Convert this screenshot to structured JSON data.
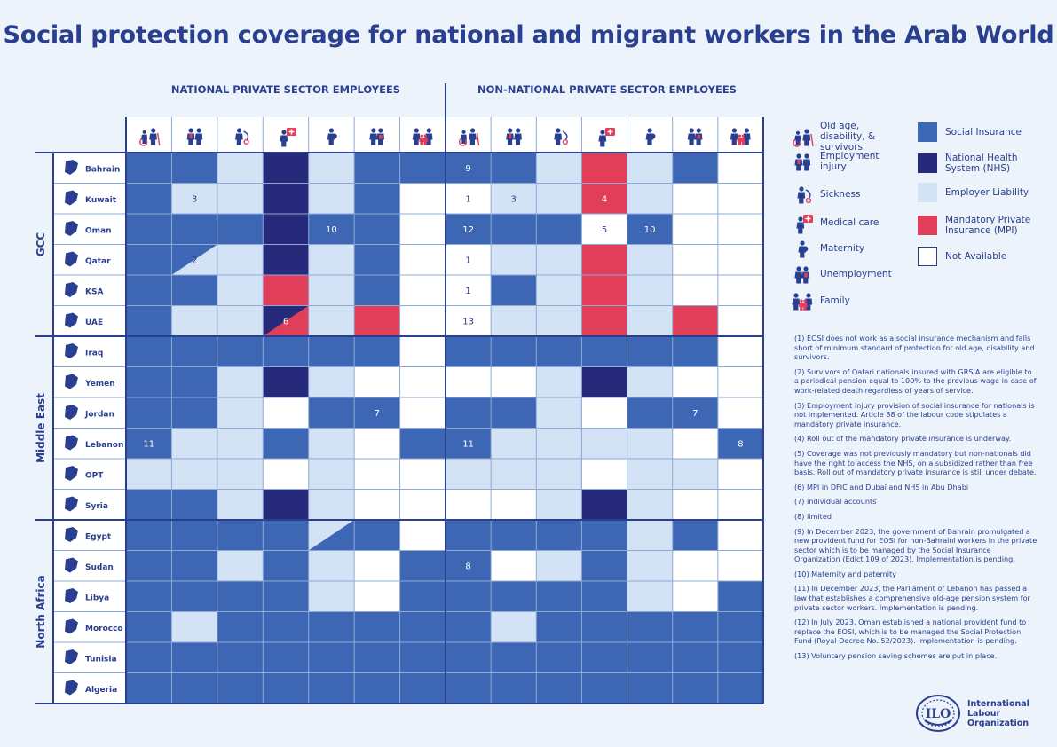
{
  "title": "Social protection coverage for national and migrant workers in the Arab World",
  "sections": {
    "national": "NATIONAL PRIVATE SECTOR EMPLOYEES",
    "non_national": "NON-NATIONAL PRIVATE SECTOR EMPLOYEES"
  },
  "colors": {
    "SI": "#3d67b5",
    "NHS": "#27297a",
    "EL": "#d3e3f5",
    "MPI": "#e13e5a",
    "NA": "#ffffff",
    "grid": "#2a3f8f",
    "divider": "#8ea9d6"
  },
  "legend": {
    "icons": [
      {
        "icon": "old-age-icon",
        "label": "Old age, disability, & survivors"
      },
      {
        "icon": "employment-injury-icon",
        "label": "Employment injury"
      },
      {
        "icon": "sickness-icon",
        "label": "Sickness"
      },
      {
        "icon": "medical-care-icon",
        "label": "Medical care"
      },
      {
        "icon": "maternity-icon",
        "label": "Maternity"
      },
      {
        "icon": "unemployment-icon",
        "label": "Unemployment"
      },
      {
        "icon": "family-icon",
        "label": "Family"
      }
    ],
    "schemes": [
      {
        "code": "SI",
        "label": "Social Insurance"
      },
      {
        "code": "NHS",
        "label": "National Health System (NHS)"
      },
      {
        "code": "EL",
        "label": "Employer Liability"
      },
      {
        "code": "MPI",
        "label": "Mandatory Private Insurance (MPI)"
      },
      {
        "code": "NA",
        "label": "Not Available"
      }
    ]
  },
  "regions": [
    {
      "name": "GCC",
      "rows": 6
    },
    {
      "name": "Middle East",
      "rows": 6
    },
    {
      "name": "North Africa",
      "rows": 6
    }
  ],
  "chart_data": {
    "type": "table",
    "columns": [
      "Old age, disability, & survivors",
      "Employment injury",
      "Sickness",
      "Medical care",
      "Maternity",
      "Unemployment",
      "Family"
    ],
    "rows": [
      {
        "country": "Bahrain",
        "national": [
          "SI",
          "SI",
          "EL",
          "NHS",
          "EL",
          "SI",
          "SI"
        ],
        "non_national": [
          "SI",
          "SI",
          "EL",
          "MPI",
          "EL",
          "SI",
          "NA"
        ],
        "nat_notes": [
          "",
          "",
          "",
          "",
          "",
          "",
          ""
        ],
        "non_notes": [
          "9",
          "",
          "",
          "",
          "",
          "",
          ""
        ]
      },
      {
        "country": "Kuwait",
        "national": [
          "SI",
          "EL",
          "EL",
          "NHS",
          "EL",
          "SI",
          "NA"
        ],
        "non_national": [
          "NA",
          "EL",
          "EL",
          "MPI",
          "EL",
          "NA",
          "NA"
        ],
        "nat_notes": [
          "",
          "3",
          "",
          "",
          "",
          "",
          ""
        ],
        "non_notes": [
          "1",
          "3",
          "",
          "4",
          "",
          "",
          ""
        ]
      },
      {
        "country": "Oman",
        "national": [
          "SI",
          "SI",
          "SI",
          "NHS",
          "SI",
          "SI",
          "NA"
        ],
        "non_national": [
          "SI",
          "SI",
          "SI",
          "NA",
          "SI",
          "NA",
          "NA"
        ],
        "nat_notes": [
          "",
          "",
          "",
          "",
          "10",
          "",
          ""
        ],
        "non_notes": [
          "12",
          "",
          "",
          "5",
          "10",
          "",
          ""
        ]
      },
      {
        "country": "Qatar",
        "national": [
          "SI",
          "SI/EL",
          "EL",
          "NHS",
          "EL",
          "SI",
          "NA"
        ],
        "non_national": [
          "NA",
          "EL",
          "EL",
          "MPI",
          "EL",
          "NA",
          "NA"
        ],
        "nat_notes": [
          "",
          "2",
          "",
          "",
          "",
          "",
          ""
        ],
        "non_notes": [
          "1",
          "",
          "",
          "",
          "",
          "",
          ""
        ]
      },
      {
        "country": "KSA",
        "national": [
          "SI",
          "SI",
          "EL",
          "MPI",
          "EL",
          "SI",
          "NA"
        ],
        "non_national": [
          "NA",
          "SI",
          "EL",
          "MPI",
          "EL",
          "NA",
          "NA"
        ],
        "nat_notes": [
          "",
          "",
          "",
          "",
          "",
          "",
          ""
        ],
        "non_notes": [
          "1",
          "",
          "",
          "",
          "",
          "",
          ""
        ]
      },
      {
        "country": "UAE",
        "national": [
          "SI",
          "EL",
          "EL",
          "NHS/MPI",
          "EL",
          "MPI",
          "NA"
        ],
        "non_national": [
          "NA",
          "EL",
          "EL",
          "MPI",
          "EL",
          "MPI",
          "NA"
        ],
        "nat_notes": [
          "",
          "",
          "",
          "6",
          "",
          "",
          ""
        ],
        "non_notes": [
          "13",
          "",
          "",
          "",
          "",
          "",
          ""
        ]
      },
      {
        "country": "Iraq",
        "national": [
          "SI",
          "SI",
          "SI",
          "SI",
          "SI",
          "SI",
          "NA"
        ],
        "non_national": [
          "SI",
          "SI",
          "SI",
          "SI",
          "SI",
          "SI",
          "NA"
        ],
        "nat_notes": [
          "",
          "",
          "",
          "",
          "",
          "",
          ""
        ],
        "non_notes": [
          "",
          "",
          "",
          "",
          "",
          "",
          ""
        ]
      },
      {
        "country": "Yemen",
        "national": [
          "SI",
          "SI",
          "EL",
          "NHS",
          "EL",
          "NA",
          "NA"
        ],
        "non_national": [
          "NA",
          "NA",
          "EL",
          "NHS",
          "EL",
          "NA",
          "NA"
        ],
        "nat_notes": [
          "",
          "",
          "",
          "",
          "",
          "",
          ""
        ],
        "non_notes": [
          "",
          "",
          "",
          "",
          "",
          "",
          ""
        ]
      },
      {
        "country": "Jordan",
        "national": [
          "SI",
          "SI",
          "EL",
          "NA",
          "SI",
          "SI",
          "NA"
        ],
        "non_national": [
          "SI",
          "SI",
          "EL",
          "NA",
          "SI",
          "SI",
          "NA"
        ],
        "nat_notes": [
          "",
          "",
          "",
          "",
          "",
          "7",
          ""
        ],
        "non_notes": [
          "",
          "",
          "",
          "",
          "",
          "7",
          ""
        ]
      },
      {
        "country": "Lebanon",
        "national": [
          "SI",
          "EL",
          "EL",
          "SI",
          "EL",
          "NA",
          "SI"
        ],
        "non_national": [
          "SI",
          "EL",
          "EL",
          "EL",
          "EL",
          "NA",
          "SI"
        ],
        "nat_notes": [
          "11",
          "",
          "",
          "",
          "",
          "",
          ""
        ],
        "non_notes": [
          "11",
          "",
          "",
          "",
          "",
          "",
          "8"
        ]
      },
      {
        "country": "OPT",
        "national": [
          "EL",
          "EL",
          "EL",
          "NA",
          "EL",
          "NA",
          "NA"
        ],
        "non_national": [
          "EL",
          "EL",
          "EL",
          "NA",
          "EL",
          "EL",
          "NA"
        ],
        "nat_notes": [
          "",
          "",
          "",
          "",
          "",
          "",
          ""
        ],
        "non_notes": [
          "",
          "",
          "",
          "",
          "",
          "",
          ""
        ]
      },
      {
        "country": "Syria",
        "national": [
          "SI",
          "SI",
          "EL",
          "NHS",
          "EL",
          "NA",
          "NA"
        ],
        "non_national": [
          "NA",
          "NA",
          "EL",
          "NHS",
          "EL",
          "NA",
          "NA"
        ],
        "nat_notes": [
          "",
          "",
          "",
          "",
          "",
          "",
          ""
        ],
        "non_notes": [
          "",
          "",
          "",
          "",
          "",
          "",
          ""
        ]
      },
      {
        "country": "Egypt",
        "national": [
          "SI",
          "SI",
          "SI",
          "SI",
          "EL/SI",
          "SI",
          "NA"
        ],
        "non_national": [
          "SI",
          "SI",
          "SI",
          "SI",
          "EL",
          "SI",
          "NA"
        ],
        "nat_notes": [
          "",
          "",
          "",
          "",
          "",
          "",
          ""
        ],
        "non_notes": [
          "",
          "",
          "",
          "",
          "",
          "",
          ""
        ]
      },
      {
        "country": "Sudan",
        "national": [
          "SI",
          "SI",
          "EL",
          "SI",
          "EL",
          "NA",
          "SI"
        ],
        "non_national": [
          "SI",
          "NA",
          "EL",
          "SI",
          "EL",
          "NA",
          "NA"
        ],
        "nat_notes": [
          "",
          "",
          "",
          "",
          "",
          "",
          ""
        ],
        "non_notes": [
          "8",
          "",
          "",
          "",
          "",
          "",
          ""
        ]
      },
      {
        "country": "Libya",
        "national": [
          "SI",
          "SI",
          "SI",
          "SI",
          "EL",
          "NA",
          "SI"
        ],
        "non_national": [
          "SI",
          "SI",
          "SI",
          "SI",
          "EL",
          "NA",
          "SI"
        ],
        "nat_notes": [
          "",
          "",
          "",
          "",
          "",
          "",
          ""
        ],
        "non_notes": [
          "",
          "",
          "",
          "",
          "",
          "",
          ""
        ]
      },
      {
        "country": "Morocco",
        "national": [
          "SI",
          "EL",
          "SI",
          "SI",
          "SI",
          "SI",
          "SI"
        ],
        "non_national": [
          "SI",
          "EL",
          "SI",
          "SI",
          "SI",
          "SI",
          "SI"
        ],
        "nat_notes": [
          "",
          "",
          "",
          "",
          "",
          "",
          ""
        ],
        "non_notes": [
          "",
          "",
          "",
          "",
          "",
          "",
          ""
        ]
      },
      {
        "country": "Tunisia",
        "national": [
          "SI",
          "SI",
          "SI",
          "SI",
          "SI",
          "SI",
          "SI"
        ],
        "non_national": [
          "SI",
          "SI",
          "SI",
          "SI",
          "SI",
          "SI",
          "SI"
        ],
        "nat_notes": [
          "",
          "",
          "",
          "",
          "",
          "",
          ""
        ],
        "non_notes": [
          "",
          "",
          "",
          "",
          "",
          "",
          ""
        ]
      },
      {
        "country": "Algeria",
        "national": [
          "SI",
          "SI",
          "SI",
          "SI",
          "SI",
          "SI",
          "SI"
        ],
        "non_national": [
          "SI",
          "SI",
          "SI",
          "SI",
          "SI",
          "SI",
          "SI"
        ],
        "nat_notes": [
          "",
          "",
          "",
          "",
          "",
          "",
          ""
        ],
        "non_notes": [
          "",
          "",
          "",
          "",
          "",
          "",
          ""
        ]
      }
    ]
  },
  "notes": [
    "(1) EOSI does not work as a social insurance mechanism and falls short of minimum standard of protection for old age, disability and survivors.",
    "(2) Survivors of Qatari nationals insured with GRSIA are eligible to a periodical pension equal to 100% to the previous wage in case of work-related death regardless of years of service.",
    "(3) Employment injury provision of social insurance for nationals is not implemented. Article 88 of the labour code stipulates a mandatory private insurance.",
    "(4) Roll out of the mandatory private insurance is underway.",
    "(5) Coverage was not previously mandatory but non-nationals did have the right to access the NHS, on a subsidized rather than free basis. Roll out of mandatory private insurance is still under debate.",
    "(6) MPI in DFIC and Dubai and NHS in Abu Dhabi",
    "(7) individual accounts",
    "(8) limited",
    "(9) In December 2023, the government of Bahrain promulgated a new provident fund for EOSI for non-Bahraini workers in the private sector which is to be managed by the Social Insurance Organization (Edict 109 of 2023). Implementation is pending.",
    "(10) Maternity and paternity",
    "(11) In December 2023, the Parliament of Lebanon has passed a law that establishes a comprehensive old-age pension system for private sector workers. Implementation is pending.",
    "(12) In July 2023, Oman established a national provident fund to replace the EOSI, which is to be managed the Social Protection Fund (Royal Decree No. 52/2023). Implementation is pending.",
    "(13) Voluntary pension saving schemes are put in place."
  ],
  "ilo": {
    "line1": "International",
    "line2": "Labour",
    "line3": "Organization"
  }
}
